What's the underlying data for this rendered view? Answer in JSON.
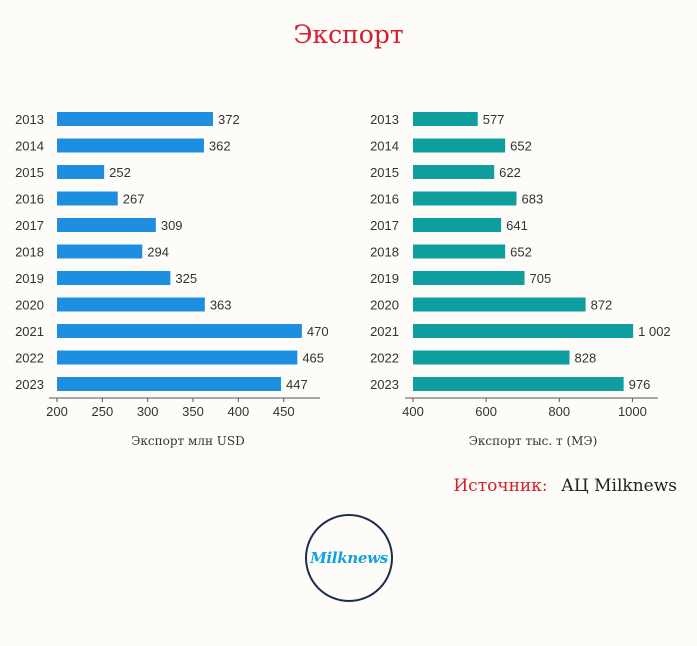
{
  "title": "Экспорт",
  "source": {
    "label": "Источник:",
    "value": "АЦ Milknews"
  },
  "logo": {
    "text": "Milknews"
  },
  "chart_data": [
    {
      "type": "bar",
      "orientation": "horizontal",
      "categories": [
        "2013",
        "2014",
        "2015",
        "2016",
        "2017",
        "2018",
        "2019",
        "2020",
        "2021",
        "2022",
        "2023"
      ],
      "values": [
        372,
        362,
        252,
        267,
        309,
        294,
        325,
        363,
        470,
        465,
        447
      ],
      "value_labels": [
        "372",
        "362",
        "252",
        "267",
        "309",
        "294",
        "325",
        "363",
        "470",
        "465",
        "447"
      ],
      "xlabel": "Экспорт млн USD",
      "xlim": [
        200,
        490
      ],
      "xticks": [
        200,
        250,
        300,
        350,
        400,
        450
      ],
      "color": "#1e8fe0",
      "grid": false
    },
    {
      "type": "bar",
      "orientation": "horizontal",
      "categories": [
        "2013",
        "2014",
        "2015",
        "2016",
        "2017",
        "2018",
        "2019",
        "2020",
        "2021",
        "2022",
        "2023"
      ],
      "values": [
        577,
        652,
        622,
        683,
        641,
        652,
        705,
        872,
        1002,
        828,
        976
      ],
      "value_labels": [
        "577",
        "652",
        "622",
        "683",
        "641",
        "652",
        "705",
        "872",
        "1 002",
        "828",
        "976"
      ],
      "xlabel": "Экспорт тыс. т (МЭ)",
      "xlim": [
        400,
        1070
      ],
      "xticks": [
        400,
        600,
        800,
        1000
      ],
      "color": "#0f9e9e",
      "grid": false
    }
  ]
}
